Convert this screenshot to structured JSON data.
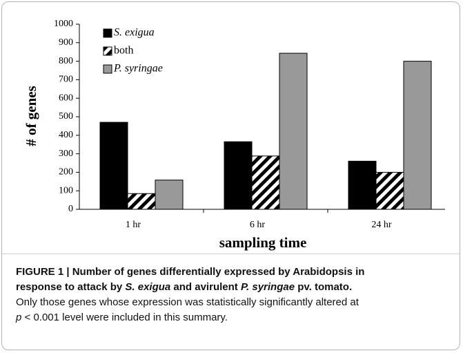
{
  "chart_data": {
    "type": "bar",
    "categories": [
      "1 hr",
      "6 hr",
      "24 hr"
    ],
    "series": [
      {
        "name": "S. exigua",
        "color": "#000000",
        "values": [
          470,
          365,
          260
        ]
      },
      {
        "name": "both",
        "color": "#000000",
        "pattern": "hatch",
        "values": [
          85,
          288,
          200
        ]
      },
      {
        "name": "P. syringae",
        "color": "#999999",
        "values": [
          158,
          843,
          800
        ]
      }
    ],
    "ylabel": "# of genes",
    "xlabel": "sampling time",
    "ylim": [
      0,
      1000
    ],
    "yticks": [
      0,
      100,
      200,
      300,
      400,
      500,
      600,
      700,
      800,
      900,
      1000
    ],
    "grid": false,
    "legend": "upper left"
  },
  "caption": {
    "title": [
      [
        "FIGURE 1 | Number of genes differentially expressed by Arabidopsis in"
      ],
      [
        "response to attack by ",
        "S. exigua",
        " and avirulent ",
        "P. syringae",
        " pv. tomato."
      ]
    ],
    "body": [
      [
        "Only those genes whose expression was statistically significantly altered at"
      ],
      [
        "p",
        " < 0.001 level were included in this summary."
      ]
    ]
  }
}
